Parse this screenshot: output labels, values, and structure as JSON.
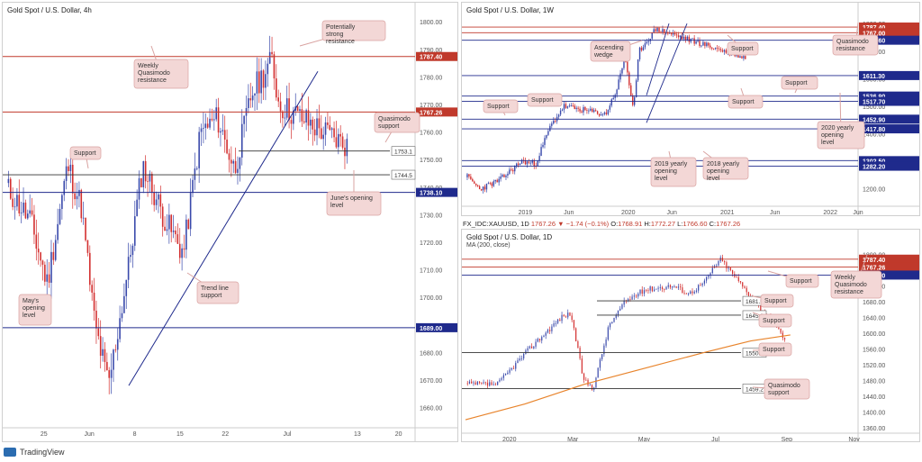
{
  "footer": {
    "brand": "TradingView"
  },
  "panels": {
    "h4": {
      "title": "Gold Spot / U.S. Dollar, 4h",
      "chart_data": {
        "type": "candlestick",
        "yticks": [
          1660,
          1670,
          1680,
          1690,
          1700,
          1710,
          1720,
          1730,
          1740,
          1750,
          1760,
          1770,
          1780,
          1790,
          1800
        ],
        "ylim": [
          1654,
          1803
        ],
        "xticks": [
          "25",
          "Jun",
          "8",
          "15",
          "22",
          "Jul",
          "13",
          "20"
        ],
        "levels": [
          {
            "value": 1787.4,
            "label": "1787.40",
            "color": "#c0392b",
            "filled": true
          },
          {
            "value": 1767.26,
            "label": "1767.26",
            "color": "#c0392b",
            "filled": true
          },
          {
            "value": 1753.1,
            "label": "1753.1",
            "color": "#333333",
            "filled": false
          },
          {
            "value": 1744.5,
            "label": "1744.5",
            "color": "#333333",
            "filled": false
          },
          {
            "value": 1738.1,
            "label": "1738.10",
            "color": "#1f2a8c",
            "filled": true
          },
          {
            "value": 1689.0,
            "label": "1689.00",
            "color": "#1f2a8c",
            "filled": true
          }
        ],
        "annotations": [
          "Potentially strong resistance",
          "Weekly Quasimodo resistance",
          "Quasimodo support",
          "Support",
          "June's opening level",
          "Trend line support",
          "May's opening level"
        ]
      }
    },
    "w1": {
      "title": "Gold Spot / U.S. Dollar, 1W",
      "chart_data": {
        "type": "candlestick",
        "yticks": [
          1200,
          1300,
          1400,
          1500,
          1600,
          1700,
          1800
        ],
        "ylim": [
          1150,
          1830
        ],
        "xticks": [
          "2019",
          "Jun",
          "2020",
          "Jun",
          "2021",
          "Jun",
          "2022",
          "Jun"
        ],
        "levels": [
          {
            "value": 1787.4,
            "label": "1787.40",
            "color": "#c0392b",
            "filled": true
          },
          {
            "value": 1767.0,
            "label": "1767.00",
            "color": "#c0392b",
            "filled": true
          },
          {
            "value": 1739.6,
            "label": "1739.60",
            "color": "#1f2a8c",
            "filled": true
          },
          {
            "value": 1611.3,
            "label": "1611.30",
            "color": "#1f2a8c",
            "filled": true
          },
          {
            "value": 1536.9,
            "label": "1536.90",
            "color": "#1f2a8c",
            "filled": true
          },
          {
            "value": 1517.7,
            "label": "1517.70",
            "color": "#1f2a8c",
            "filled": true
          },
          {
            "value": 1452.9,
            "label": "1452.90",
            "color": "#1f2a8c",
            "filled": true
          },
          {
            "value": 1417.8,
            "label": "1417.80",
            "color": "#1f2a8c",
            "filled": true
          },
          {
            "value": 1302.5,
            "label": "1302.50",
            "color": "#1f2a8c",
            "filled": true
          },
          {
            "value": 1282.2,
            "label": "1282.20",
            "color": "#1f2a8c",
            "filled": true
          }
        ],
        "annotations": [
          "Ascending wedge",
          "Support",
          "Quasimodo resistance",
          "Support",
          "Support",
          "Support",
          "Support",
          "2020 yearly opening level",
          "2019 yearly opening level",
          "2018 yearly opening level"
        ]
      }
    },
    "d1": {
      "title": "Gold Spot / U.S. Dollar, 1D",
      "subtitle": "MA (200, close)",
      "ohlc": {
        "symbol": "FX_IDC:XAUUSD, 1D",
        "last": "1767.26",
        "change": "−1.74 (−0.1%)",
        "o_label": "O:",
        "o": "1768.91",
        "h_label": "H:",
        "h": "1772.27",
        "l_label": "L:",
        "l": "1766.60",
        "c_label": "C:",
        "c": "1767.26"
      },
      "chart_data": {
        "type": "candlestick",
        "yticks": [
          1360,
          1400,
          1440,
          1480,
          1520,
          1560,
          1600,
          1640,
          1680,
          1720,
          1760,
          1800
        ],
        "ylim": [
          1355,
          1812
        ],
        "xticks": [
          "2020",
          "Mar",
          "May",
          "Jul",
          "Sep",
          "Nov"
        ],
        "ma_color": "#e8842c",
        "levels": [
          {
            "value": 1787.4,
            "label": "1787.40",
            "color": "#c0392b",
            "filled": true
          },
          {
            "value": 1767.26,
            "label": "1767.26",
            "color": "#c0392b",
            "filled": true
          },
          {
            "value": 1747.0,
            "label": "1747.00",
            "color": "#1f2a8c",
            "filled": true
          },
          {
            "value": 1681.5,
            "label": "1681.5",
            "color": "#333333",
            "filled": false
          },
          {
            "value": 1645.3,
            "label": "1645.3",
            "color": "#333333",
            "filled": false
          },
          {
            "value": 1550.3,
            "label": "1550.3",
            "color": "#333333",
            "filled": false
          },
          {
            "value": 1459.2,
            "label": "1459.2",
            "color": "#333333",
            "filled": false
          }
        ],
        "annotations": [
          "Support",
          "Weekly Quasimodo resistance",
          "Support",
          "Support",
          "Support",
          "Quasimodo support"
        ]
      }
    }
  },
  "colors": {
    "up": "#3949ab",
    "down": "#d32f2f",
    "bubble": "#f3d7d6",
    "bubble_border": "#d9a3a1"
  }
}
